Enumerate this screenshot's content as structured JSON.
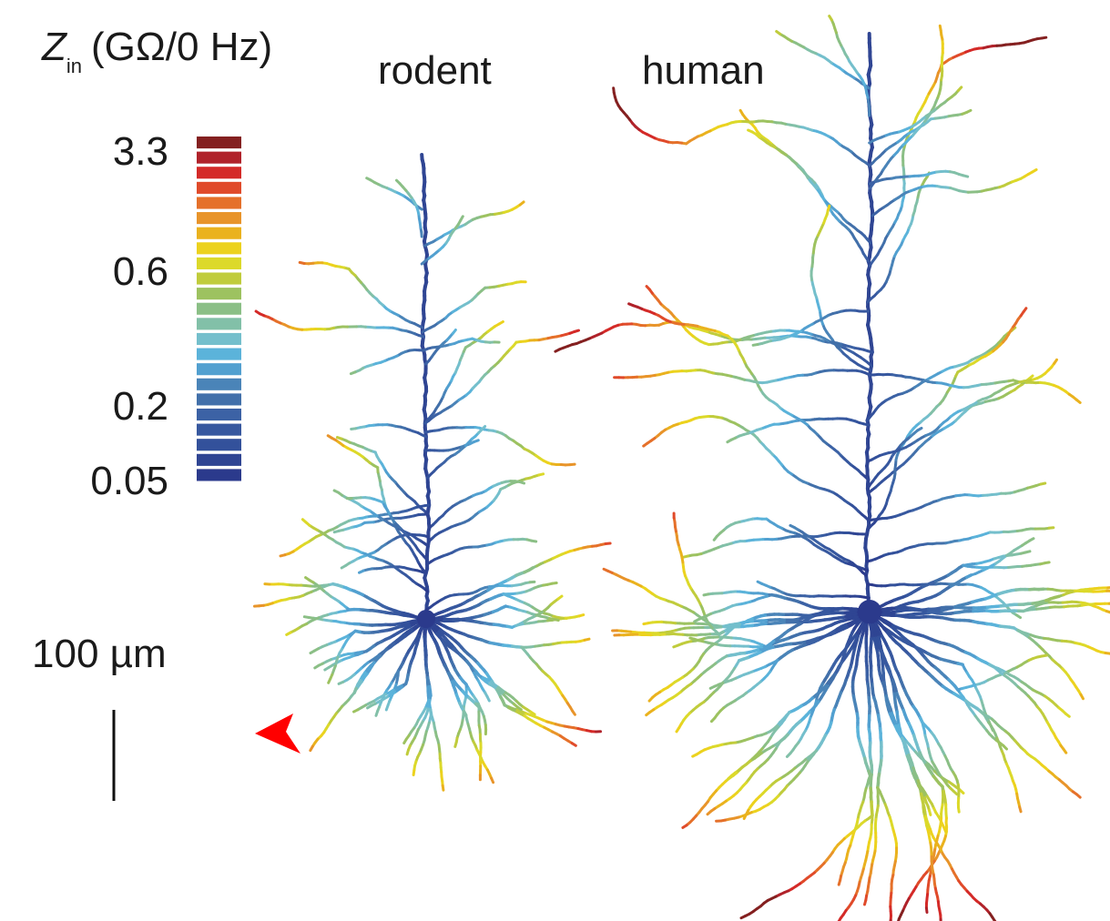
{
  "colorbar": {
    "title": {
      "symbol": "Z",
      "subscript": "in",
      "unit": "(GΩ/0 Hz)"
    },
    "ticks": [
      "3.3",
      "0.6",
      "0.2",
      "0.05"
    ],
    "colors": [
      "#842020",
      "#b0222a",
      "#d42a28",
      "#e04a2a",
      "#e5702a",
      "#e8942a",
      "#eab21e",
      "#ecd21e",
      "#dcd92a",
      "#c0cc3c",
      "#9dc260",
      "#8bbf86",
      "#82c0a8",
      "#74bfcc",
      "#5bb3da",
      "#52a0d0",
      "#4a84b8",
      "#4270aa",
      "#3c62a5",
      "#37589f",
      "#33519b",
      "#2f4593",
      "#2b3a8c"
    ]
  },
  "labels": {
    "rodent": "rodent",
    "human": "human"
  },
  "scale_bar": "100 µm"
}
